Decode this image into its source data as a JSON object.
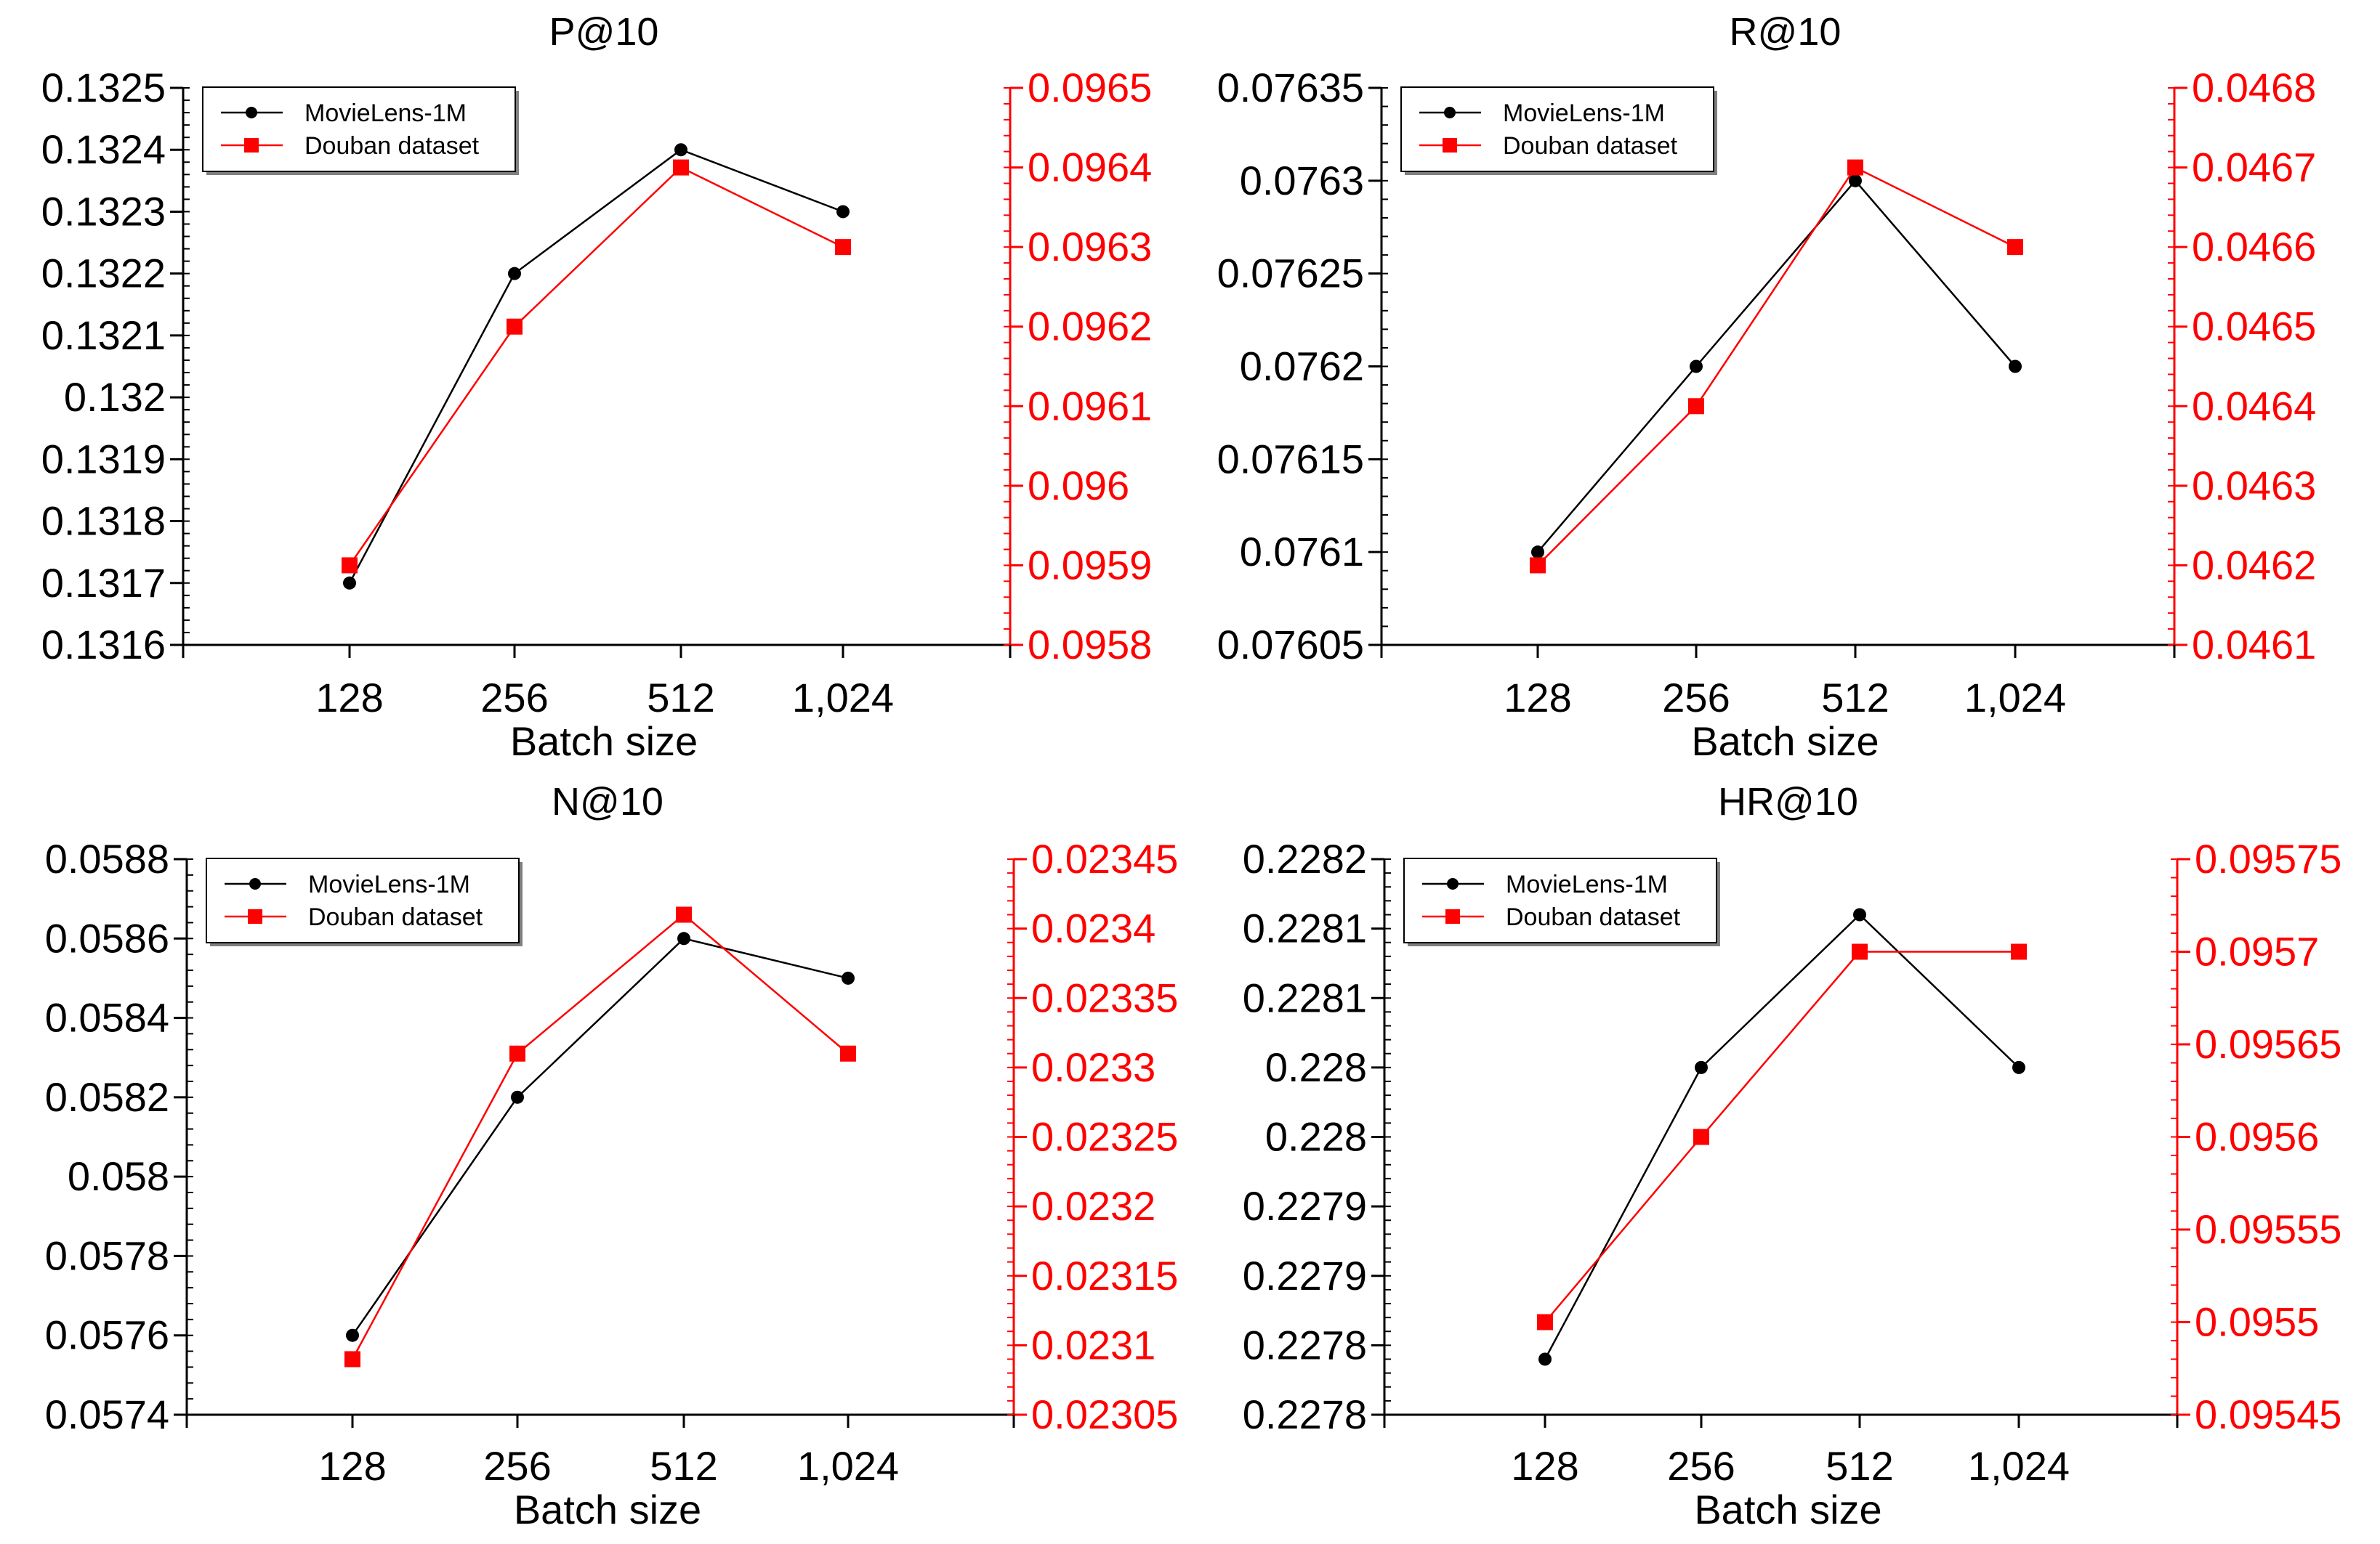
{
  "figure": {
    "background": "#ffffff",
    "left_axis_color": "#000000",
    "right_axis_color": "#ff0000"
  },
  "chart_data": [
    {
      "type": "line",
      "title": "P@10",
      "xlabel": "Batch size",
      "categories": [
        "128",
        "256",
        "512",
        "1,024"
      ],
      "legend": {
        "placement": "top-left"
      },
      "y_left": {
        "range": [
          0.1316,
          0.1325
        ],
        "ticks": [
          0.1316,
          0.1317,
          0.1318,
          0.1319,
          0.132,
          0.1321,
          0.1322,
          0.1323,
          0.1324,
          0.1325
        ],
        "tick_labels": [
          "0.1316",
          "0.1317",
          "0.1318",
          "0.1319",
          "0.132",
          "0.1321",
          "0.1322",
          "0.1323",
          "0.1324",
          "0.1325"
        ]
      },
      "y_right": {
        "range": [
          0.0958,
          0.0965
        ],
        "ticks": [
          0.0958,
          0.0959,
          0.096,
          0.0961,
          0.0962,
          0.0963,
          0.0964,
          0.0965
        ],
        "tick_labels": [
          "0.0958",
          "0.0959",
          "0.096",
          "0.0961",
          "0.0962",
          "0.0963",
          "0.0964",
          "0.0965"
        ]
      },
      "series": [
        {
          "name": "MovieLens-1M",
          "axis": "left",
          "color": "#000000",
          "marker": "circle",
          "values": [
            0.1317,
            0.1322,
            0.1324,
            0.1323
          ]
        },
        {
          "name": "Douban dataset",
          "axis": "right",
          "color": "#ff0000",
          "marker": "square",
          "values": [
            0.0959,
            0.0962,
            0.0964,
            0.0963
          ]
        }
      ]
    },
    {
      "type": "line",
      "title": "R@10",
      "xlabel": "Batch size",
      "categories": [
        "128",
        "256",
        "512",
        "1,024"
      ],
      "legend": {
        "placement": "top-left"
      },
      "y_left": {
        "range": [
          0.07605,
          0.07635
        ],
        "ticks": [
          0.07605,
          0.0761,
          0.07615,
          0.0762,
          0.07625,
          0.0763,
          0.07635
        ],
        "tick_labels": [
          "0.07605",
          "0.0761",
          "0.07615",
          "0.0762",
          "0.07625",
          "0.0763",
          "0.07635"
        ]
      },
      "y_right": {
        "range": [
          0.0461,
          0.0468
        ],
        "ticks": [
          0.0461,
          0.0462,
          0.0463,
          0.0464,
          0.0465,
          0.0466,
          0.0467,
          0.0468
        ],
        "tick_labels": [
          "0.0461",
          "0.0462",
          "0.0463",
          "0.0464",
          "0.0465",
          "0.0466",
          "0.0467",
          "0.0468"
        ]
      },
      "series": [
        {
          "name": "MovieLens-1M",
          "axis": "left",
          "color": "#000000",
          "marker": "circle",
          "values": [
            0.0761,
            0.0762,
            0.0763,
            0.0762
          ]
        },
        {
          "name": "Douban dataset",
          "axis": "right",
          "color": "#ff0000",
          "marker": "square",
          "values": [
            0.0462,
            0.0464,
            0.0467,
            0.0466
          ]
        }
      ]
    },
    {
      "type": "line",
      "title": "N@10",
      "xlabel": "Batch size",
      "categories": [
        "128",
        "256",
        "512",
        "1,024"
      ],
      "legend": {
        "placement": "top-left"
      },
      "y_left": {
        "range": [
          0.0574,
          0.0588
        ],
        "ticks": [
          0.0574,
          0.0576,
          0.0578,
          0.058,
          0.0582,
          0.0584,
          0.0586,
          0.0588
        ],
        "tick_labels": [
          "0.0574",
          "0.0576",
          "0.0578",
          "0.058",
          "0.0582",
          "0.0584",
          "0.0586",
          "0.0588"
        ]
      },
      "y_right": {
        "range": [
          0.02305,
          0.02345
        ],
        "ticks": [
          0.02305,
          0.0231,
          0.02315,
          0.0232,
          0.02325,
          0.0233,
          0.02335,
          0.0234,
          0.02345
        ],
        "tick_labels": [
          "0.02305",
          "0.0231",
          "0.02315",
          "0.0232",
          "0.02325",
          "0.0233",
          "0.02335",
          "0.0234",
          "0.02345"
        ]
      },
      "series": [
        {
          "name": "MovieLens-1M",
          "axis": "left",
          "color": "#000000",
          "marker": "circle",
          "values": [
            0.0576,
            0.0582,
            0.0586,
            0.0585
          ]
        },
        {
          "name": "Douban dataset",
          "axis": "right",
          "color": "#ff0000",
          "marker": "square",
          "values": [
            0.02309,
            0.02331,
            0.02341,
            0.02331
          ]
        }
      ]
    },
    {
      "type": "line",
      "title": "HR@10",
      "xlabel": "Batch size",
      "categories": [
        "128",
        "256",
        "512",
        "1,024"
      ],
      "legend": {
        "placement": "top-left"
      },
      "y_left": {
        "range": [
          0.22775,
          0.22815
        ],
        "ticks": [
          0.22775,
          0.2278,
          0.22785,
          0.2279,
          0.22795,
          0.228,
          0.22805,
          0.2281,
          0.22815
        ],
        "tick_labels": [
          "0.2278",
          "0.2278",
          "0.2279",
          "0.2279",
          "0.228",
          "0.228",
          "0.2281",
          "0.2281",
          "0.2282"
        ]
      },
      "y_right": {
        "range": [
          0.09545,
          0.09575
        ],
        "ticks": [
          0.09545,
          0.0955,
          0.09555,
          0.0956,
          0.09565,
          0.0957,
          0.09575
        ],
        "tick_labels": [
          "0.09545",
          "0.0955",
          "0.09555",
          "0.0956",
          "0.09565",
          "0.0957",
          "0.09575"
        ]
      },
      "series": [
        {
          "name": "MovieLens-1M",
          "axis": "left",
          "color": "#000000",
          "marker": "circle",
          "values": [
            0.22779,
            0.228,
            0.22811,
            0.228
          ]
        },
        {
          "name": "Douban dataset",
          "axis": "right",
          "color": "#ff0000",
          "marker": "square",
          "values": [
            0.0955,
            0.0956,
            0.0957,
            0.0957
          ]
        }
      ]
    }
  ]
}
